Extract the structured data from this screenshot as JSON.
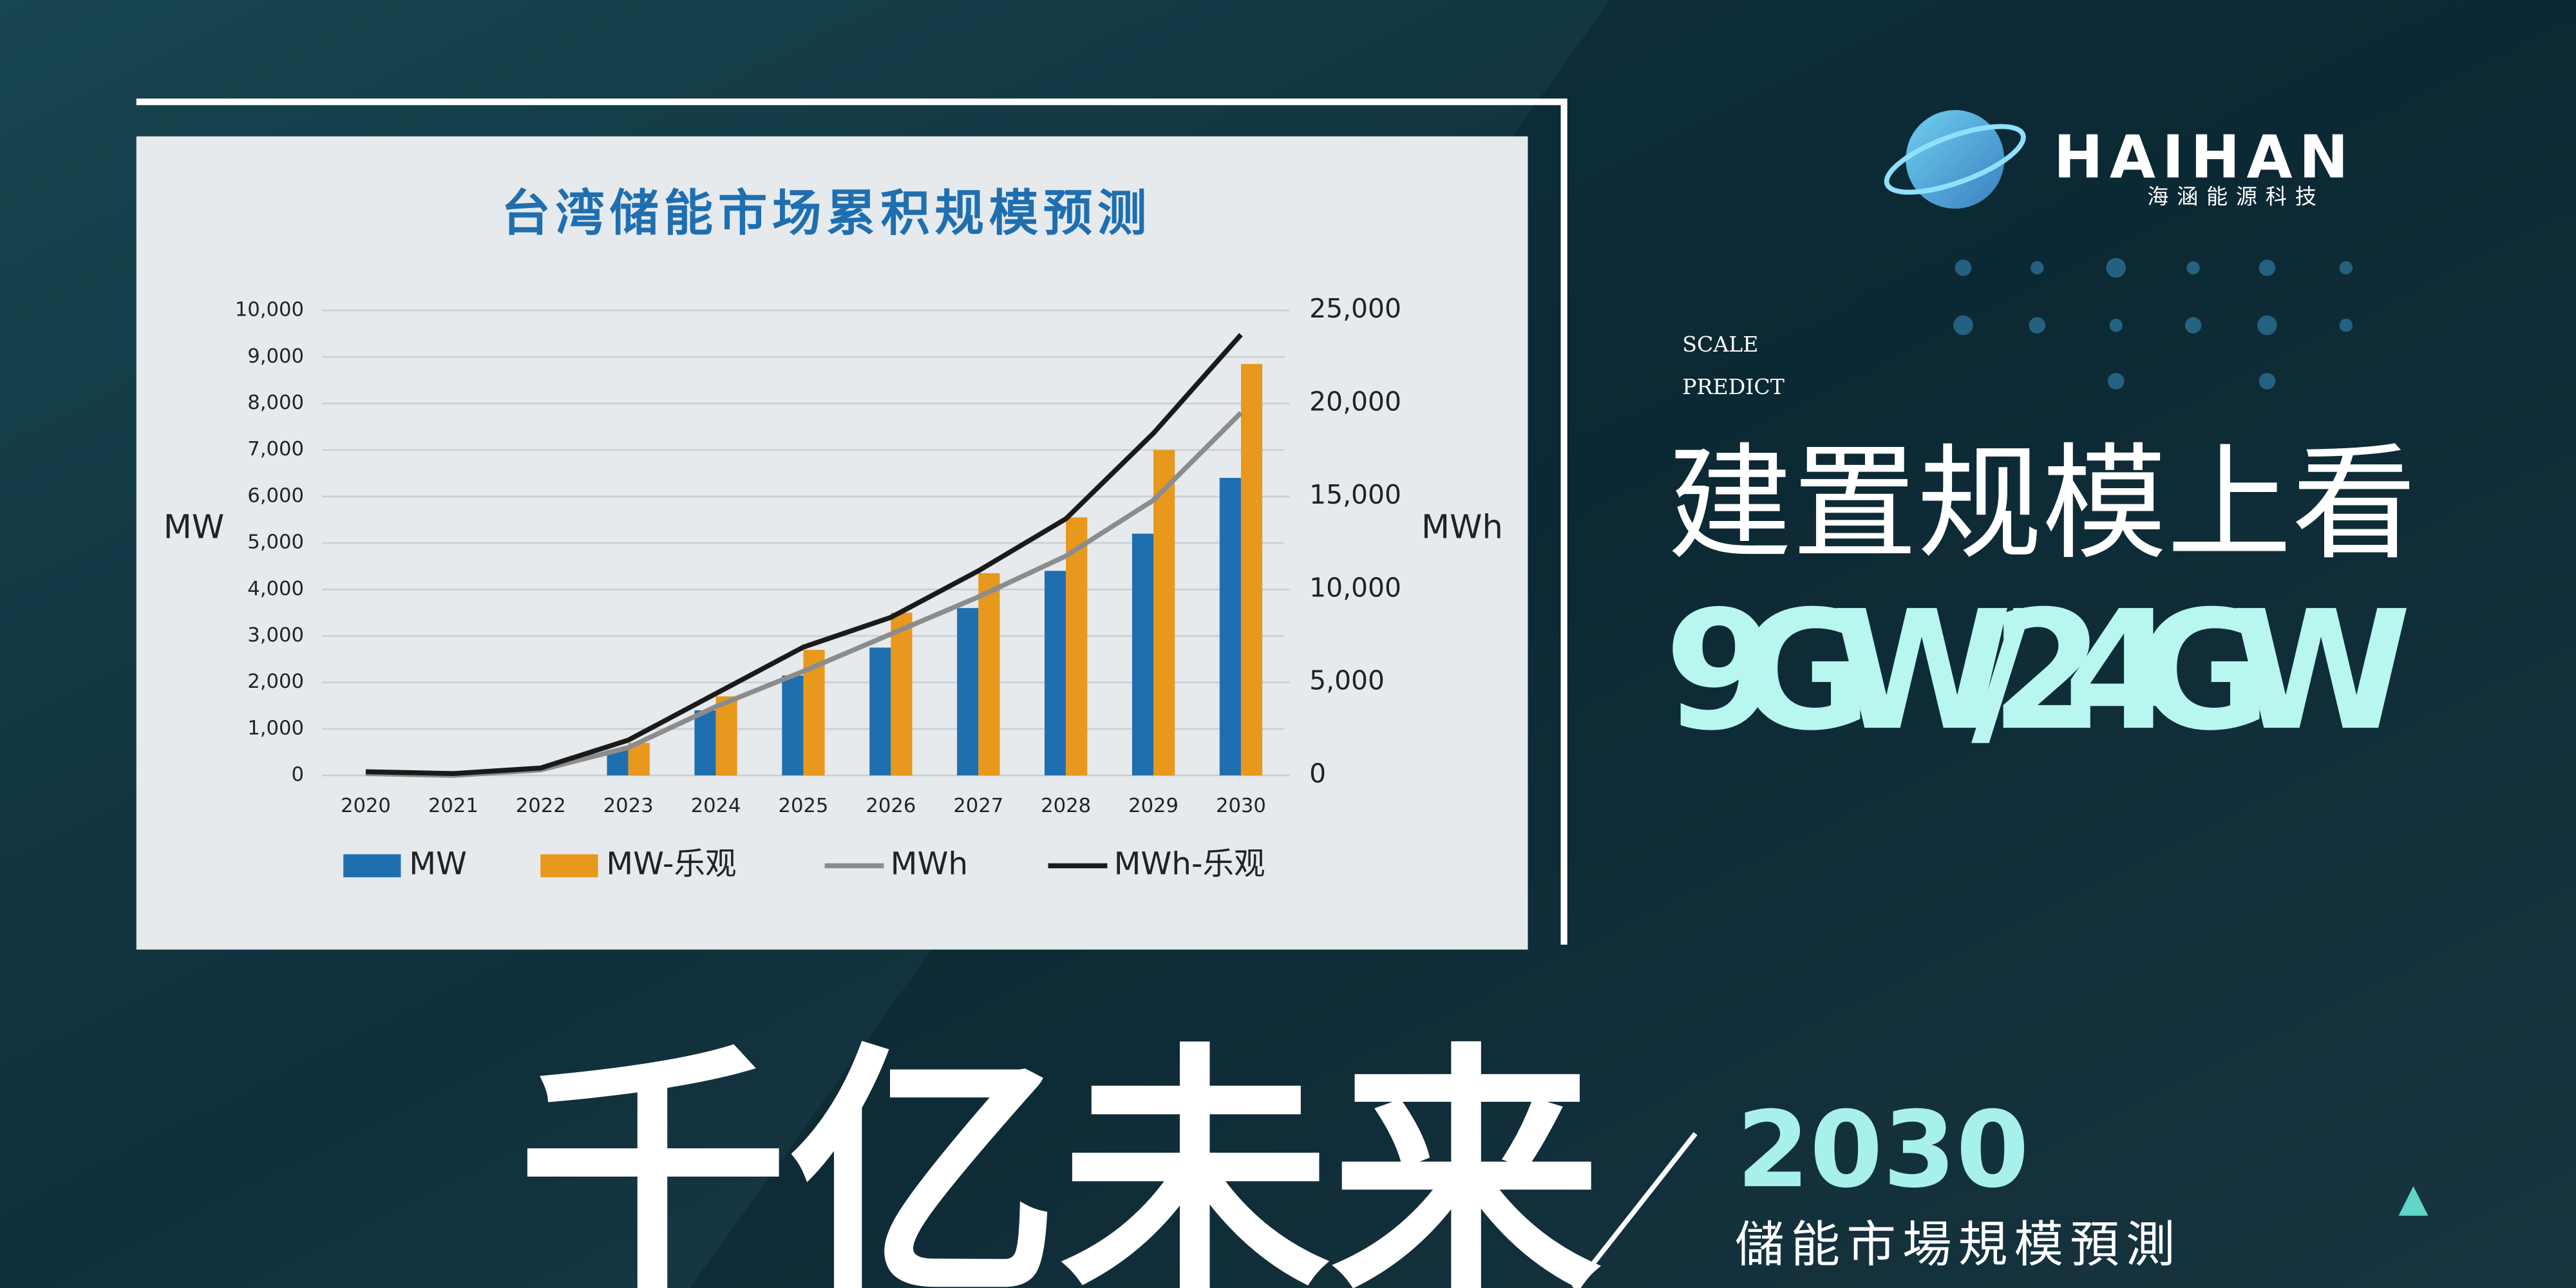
{
  "chart_data": {
    "type": "bar",
    "title": "台湾储能市场累积规模预测",
    "y_label": "MW",
    "y2_label": "MWh",
    "categories": [
      "2020",
      "2021",
      "2022",
      "2023",
      "2024",
      "2025",
      "2026",
      "2027",
      "2028",
      "2029",
      "2030"
    ],
    "series": [
      {
        "name": "MW",
        "type": "bar",
        "color": "#1f6fb0",
        "values": [
          0,
          0,
          0,
          550,
          1400,
          2150,
          2750,
          3600,
          4400,
          5200,
          6400
        ]
      },
      {
        "name": "MW-乐观",
        "type": "bar",
        "color": "#e8981c",
        "values": [
          0,
          0,
          0,
          700,
          1700,
          2700,
          3500,
          4350,
          5550,
          7000,
          8850
        ]
      },
      {
        "name": "MWh",
        "type": "line",
        "axis": "y2",
        "color": "#8c8c8c",
        "values": [
          100,
          0,
          300,
          1500,
          3700,
          5600,
          7600,
          9600,
          11800,
          14800,
          19500
        ]
      },
      {
        "name": "MWh-乐观",
        "type": "line",
        "axis": "y2",
        "color": "#1a1a1a",
        "values": [
          200,
          100,
          400,
          1900,
          4400,
          6900,
          8500,
          11000,
          13800,
          18400,
          23700
        ]
      }
    ],
    "ylim": [
      0,
      10000
    ],
    "yticks": [
      0,
      {
        "value": 1000,
        "label": "1,000"
      },
      {
        "value": 2000,
        "label": "2,000"
      },
      {
        "value": 3000,
        "label": "3,000"
      },
      {
        "value": 4000,
        "label": "4,000"
      },
      {
        "value": 5000,
        "label": "5,000"
      },
      {
        "value": 6000,
        "label": "6,000"
      },
      {
        "value": 7000,
        "label": "7,000"
      },
      {
        "value": 8000,
        "label": "8,000"
      },
      {
        "value": 9000,
        "label": "9,000"
      },
      {
        "value": 10000,
        "label": "10,000"
      }
    ],
    "y2lim": [
      0,
      25000
    ],
    "y2ticks": [
      0,
      {
        "value": 5000,
        "label": "5,000"
      },
      {
        "value": 10000,
        "label": "10,000"
      },
      {
        "value": 15000,
        "label": "15,000"
      },
      {
        "value": 20000,
        "label": "20,000"
      },
      {
        "value": 25000,
        "label": "25,000"
      }
    ],
    "grid": true
  },
  "banner": {
    "logo": "HAIHAN",
    "logo_subtitle": "海涵能源科技",
    "tag_1": "SCALE",
    "tag_2": "PREDICT",
    "headline": "建置规模上看",
    "headline_value": "9GW/24GW",
    "slogan": "千亿未来",
    "year": "2030",
    "subtitle": "儲能市場規模預測"
  }
}
